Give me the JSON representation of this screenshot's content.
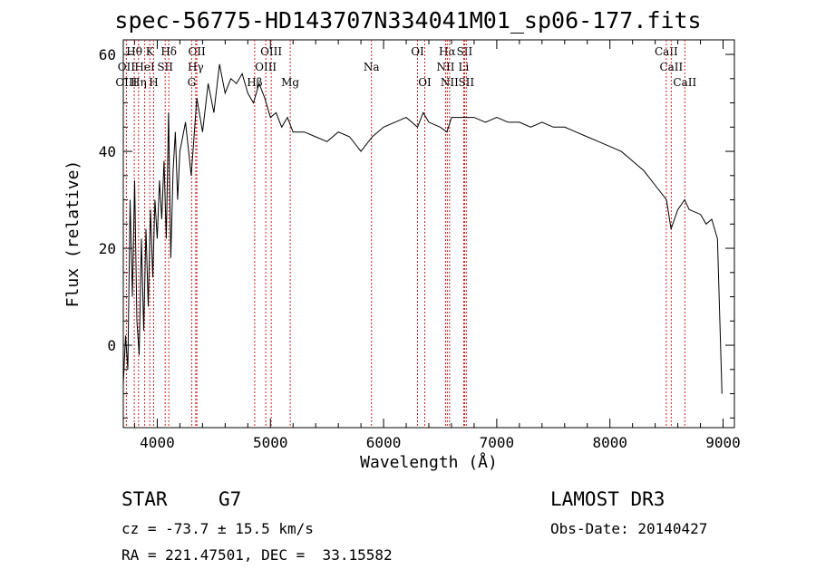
{
  "chart_data": {
    "type": "line",
    "title": "spec-56775-HD143707N334041M01_sp06-177.fits",
    "xlabel": "Wavelength (Å)",
    "ylabel": "Flux (relative)",
    "xlim": [
      3700,
      9100
    ],
    "ylim": [
      -17,
      63
    ],
    "xticks": [
      4000,
      5000,
      6000,
      7000,
      8000,
      9000
    ],
    "yticks": [
      0,
      20,
      40,
      60
    ],
    "grid": false,
    "series": [
      {
        "name": "spectrum",
        "x": [
          3700,
          3720,
          3740,
          3760,
          3780,
          3800,
          3820,
          3840,
          3860,
          3880,
          3900,
          3920,
          3940,
          3960,
          3980,
          4000,
          4020,
          4040,
          4060,
          4080,
          4100,
          4120,
          4140,
          4160,
          4180,
          4200,
          4250,
          4300,
          4350,
          4400,
          4450,
          4500,
          4550,
          4600,
          4650,
          4700,
          4750,
          4800,
          4850,
          4900,
          4950,
          5000,
          5050,
          5100,
          5150,
          5200,
          5300,
          5400,
          5500,
          5600,
          5700,
          5800,
          5900,
          6000,
          6100,
          6200,
          6300,
          6350,
          6400,
          6500,
          6560,
          6600,
          6700,
          6800,
          6900,
          7000,
          7100,
          7200,
          7300,
          7400,
          7500,
          7600,
          7700,
          7800,
          7900,
          8000,
          8100,
          8200,
          8300,
          8400,
          8500,
          8540,
          8600,
          8660,
          8700,
          8800,
          8850,
          8900,
          8950,
          8990
        ],
        "y": [
          -8,
          2,
          -5,
          30,
          10,
          34,
          5,
          -2,
          22,
          3,
          24,
          8,
          28,
          14,
          30,
          22,
          34,
          26,
          38,
          22,
          48,
          18,
          36,
          44,
          30,
          40,
          46,
          35,
          51,
          44,
          54,
          48,
          58,
          52,
          55,
          54,
          56,
          52,
          50,
          54,
          51,
          47,
          48,
          45,
          47,
          44,
          44,
          43,
          42,
          44,
          43,
          40,
          43,
          45,
          46,
          47,
          45,
          48,
          46,
          45,
          44,
          47,
          47,
          47,
          46,
          47,
          46,
          46,
          45,
          46,
          45,
          45,
          44,
          43,
          42,
          41,
          40,
          38,
          36,
          33,
          30,
          24,
          28,
          30,
          28,
          27,
          25,
          26,
          22,
          -10
        ]
      }
    ],
    "lines_top": [
      {
        "label": "Hθ",
        "x": 3797
      },
      {
        "label": "K",
        "x": 3934
      },
      {
        "label": "Hδ",
        "x": 4102
      },
      {
        "label": "OII",
        "x": 4350
      },
      {
        "label": "OIII",
        "x": 5007
      },
      {
        "label": "OI",
        "x": 6300
      },
      {
        "label": "Hα",
        "x": 6563
      },
      {
        "label": "SII",
        "x": 6716
      },
      {
        "label": "CaII",
        "x": 8498
      }
    ],
    "lines_mid": [
      {
        "label": "OII",
        "x": 3727
      },
      {
        "label": "HeI",
        "x": 3889
      },
      {
        "label": "SII",
        "x": 4070
      },
      {
        "label": "Hγ",
        "x": 4340
      },
      {
        "label": "OIII",
        "x": 4959
      },
      {
        "label": "Na",
        "x": 5893
      },
      {
        "label": "NII",
        "x": 6548
      },
      {
        "label": "Li",
        "x": 6708
      },
      {
        "label": "CaII",
        "x": 8542
      }
    ],
    "lines_low": [
      {
        "label": "OIII",
        "x": 3727
      },
      {
        "label": "Hη",
        "x": 3835
      },
      {
        "label": "H",
        "x": 3968
      },
      {
        "label": "G",
        "x": 4304
      },
      {
        "label": "Hβ",
        "x": 4861
      },
      {
        "label": "Mg",
        "x": 5175
      },
      {
        "label": "OI",
        "x": 6364
      },
      {
        "label": "NII",
        "x": 6583
      },
      {
        "label": "SII",
        "x": 6731
      },
      {
        "label": "CaII",
        "x": 8662
      }
    ]
  },
  "info": {
    "class_label": "STAR",
    "subclass": "G7",
    "survey": "LAMOST DR3",
    "redshift": "cz = -73.7 ± 15.5 km/s",
    "obs_date": "Obs-Date: 20140427",
    "coords": "RA = 221.47501, DEC =  33.15582"
  }
}
